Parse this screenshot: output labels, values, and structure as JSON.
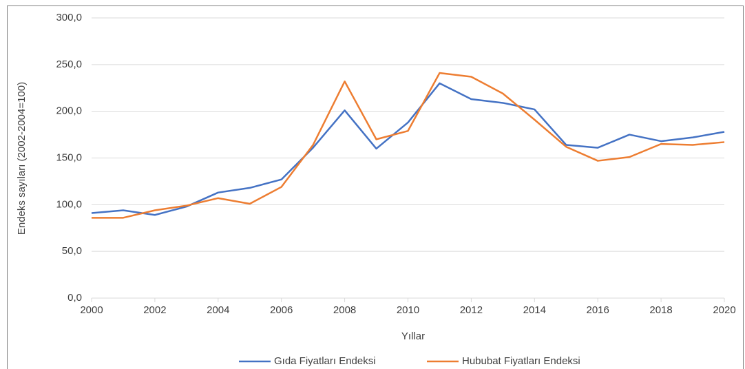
{
  "chart_data": {
    "type": "line",
    "x_label": "Yıllar",
    "y_label": "Endeks sayıları (2002-2004=100)",
    "x": [
      2000,
      2001,
      2002,
      2003,
      2004,
      2005,
      2006,
      2007,
      2008,
      2009,
      2010,
      2011,
      2012,
      2013,
      2014,
      2015,
      2016,
      2017,
      2018,
      2019,
      2020
    ],
    "series": [
      {
        "name": "Gıda Fiyatları Endeksi",
        "color": "#4472c4",
        "values": [
          91,
          94,
          89,
          98,
          113,
          118,
          127,
          161,
          201,
          160,
          188,
          230,
          213,
          209,
          202,
          164,
          161,
          175,
          168,
          172,
          178
        ]
      },
      {
        "name": "Hububat Fiyatları Endeksi",
        "color": "#ed7d31",
        "values": [
          86,
          86,
          94,
          99,
          107,
          101,
          119,
          164,
          232,
          170,
          179,
          241,
          237,
          219,
          191,
          162,
          147,
          151,
          165,
          164,
          167
        ]
      }
    ],
    "xlim": [
      2000,
      2020
    ],
    "xticks": [
      2000,
      2002,
      2004,
      2006,
      2008,
      2010,
      2012,
      2014,
      2016,
      2018,
      2020
    ],
    "ylim": [
      0,
      300
    ],
    "yticks": [
      {
        "value": 0,
        "label": "0,0"
      },
      {
        "value": 50,
        "label": "50,0"
      },
      {
        "value": 100,
        "label": "100,0"
      },
      {
        "value": 150,
        "label": "150,0"
      },
      {
        "value": 200,
        "label": "200,0"
      },
      {
        "value": 250,
        "label": "250,0"
      },
      {
        "value": 300,
        "label": "300,0"
      }
    ],
    "grid": true,
    "legend": "bottom"
  }
}
